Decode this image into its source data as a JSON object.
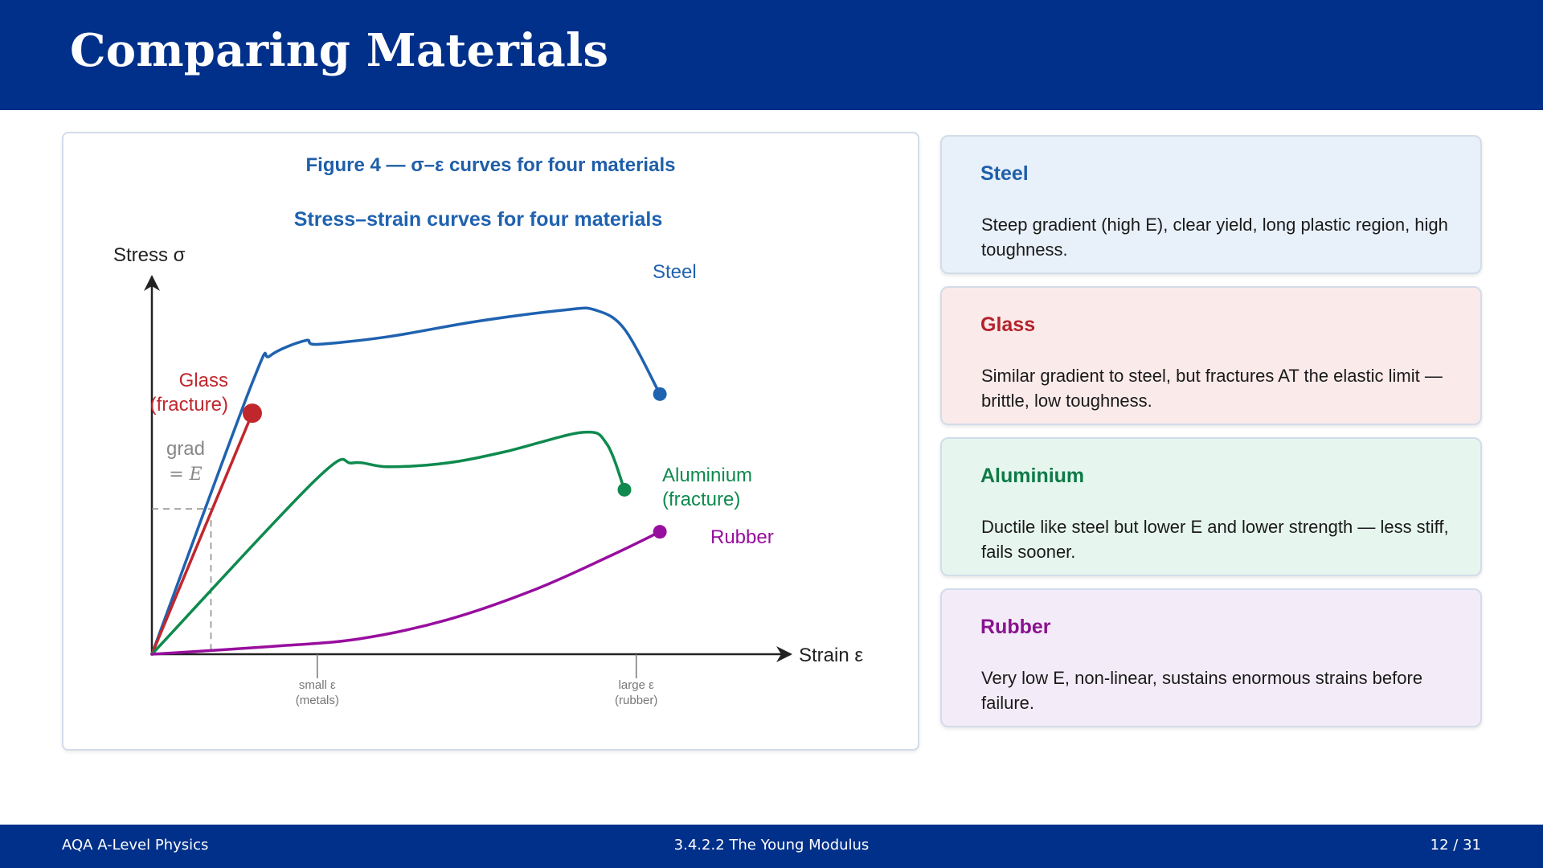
{
  "slide": {
    "title": "Comparing Materials"
  },
  "figure": {
    "caption": "Figure 4 — σ–ε curves for four materials"
  },
  "chart_data": {
    "type": "line",
    "title": "Stress–strain curves for four materials",
    "ylabel": "Stress σ",
    "xlabel": "Strain ε",
    "axis_ticks": [
      {
        "x": 0.28,
        "label_line1": "small ε",
        "label_line2": "(metals)"
      },
      {
        "x": 0.82,
        "label_line1": "large ε",
        "label_line2": "(rubber)"
      }
    ],
    "gradient_annotation": {
      "line1": "grad",
      "line2": "= E",
      "x": 0.1,
      "y": 0.38
    },
    "xlim": [
      0,
      1
    ],
    "ylim": [
      0,
      1
    ],
    "series": [
      {
        "name": "Steel",
        "label": "Steel",
        "color": "#1f62b0",
        "points": [
          [
            0,
            0
          ],
          [
            0.17,
            0.71
          ],
          [
            0.2,
            0.78
          ],
          [
            0.26,
            0.82
          ],
          [
            0.28,
            0.81
          ],
          [
            0.4,
            0.83
          ],
          [
            0.55,
            0.87
          ],
          [
            0.7,
            0.9
          ],
          [
            0.75,
            0.9
          ],
          [
            0.8,
            0.85
          ],
          [
            0.86,
            0.68
          ]
        ],
        "end_marker": true
      },
      {
        "name": "Glass",
        "label": "Glass",
        "label_line2": "(fracture)",
        "color": "#c0272d",
        "points": [
          [
            0,
            0
          ],
          [
            0.17,
            0.63
          ]
        ],
        "end_marker": true
      },
      {
        "name": "Aluminium",
        "label": "Aluminium",
        "label_line2": "(fracture)",
        "color": "#0e8a4e",
        "points": [
          [
            0,
            0
          ],
          [
            0.28,
            0.46
          ],
          [
            0.34,
            0.5
          ],
          [
            0.4,
            0.49
          ],
          [
            0.5,
            0.5
          ],
          [
            0.6,
            0.53
          ],
          [
            0.73,
            0.58
          ],
          [
            0.77,
            0.55
          ],
          [
            0.8,
            0.43
          ]
        ],
        "end_marker": true
      },
      {
        "name": "Rubber",
        "label": "Rubber",
        "color": "#980e9e",
        "points": [
          [
            0,
            0
          ],
          [
            0.2,
            0.02
          ],
          [
            0.35,
            0.04
          ],
          [
            0.5,
            0.09
          ],
          [
            0.65,
            0.17
          ],
          [
            0.78,
            0.26
          ],
          [
            0.86,
            0.32
          ]
        ],
        "end_marker": true
      }
    ]
  },
  "cards": [
    {
      "title": "Steel",
      "body": "Steep gradient (high E), clear yield, long plastic region, high toughness.",
      "title_color": "#1f5ea8",
      "bg": "#e8f0f9"
    },
    {
      "title": "Glass",
      "body": "Similar gradient to steel, but fractures AT the elastic limit — brittle, low toughness.",
      "title_color": "#b3232b",
      "bg": "#fbeaea"
    },
    {
      "title": "Aluminium",
      "body": "Ductile like steel but lower E and lower strength — less stiff, fails sooner.",
      "title_color": "#0e7a46",
      "bg": "#e6f6ef"
    },
    {
      "title": "Rubber",
      "body": "Very low E, non-linear, sustains enormous strains before failure.",
      "title_color": "#8a128f",
      "bg": "#f3ecf8"
    }
  ],
  "footer": {
    "left": "AQA A-Level Physics",
    "center": "3.4.2.2  The Young Modulus",
    "right": "12 / 31"
  }
}
